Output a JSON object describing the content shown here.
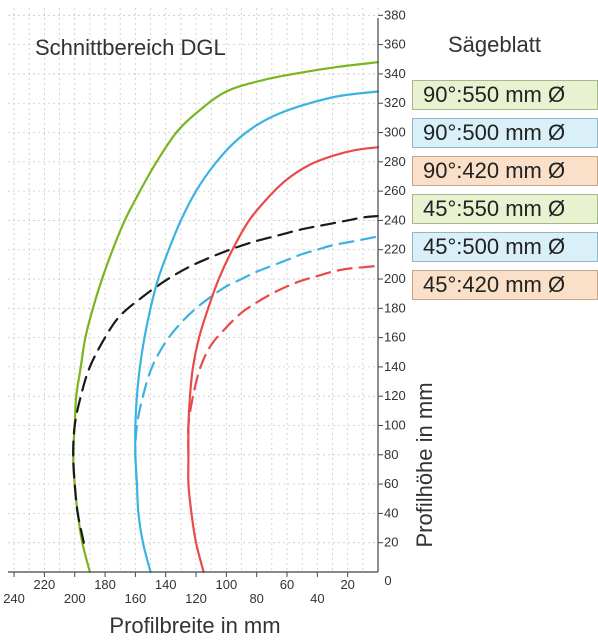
{
  "legend": {
    "title": "Sägeblatt",
    "items": [
      {
        "label": "90°:550 mm Ø",
        "color": "#e8f2d0",
        "border": "#a8b88a"
      },
      {
        "label": "90°:500 mm Ø",
        "color": "#d9f0f8",
        "border": "#93b6c4"
      },
      {
        "label": "90°:420 mm Ø",
        "color": "#fbe0c9",
        "border": "#c9a58b"
      },
      {
        "label": "45°:550 mm Ø",
        "color": "#e8f2d0",
        "border": "#a8b88a"
      },
      {
        "label": "45°:500 mm Ø",
        "color": "#d9f0f8",
        "border": "#93b6c4"
      },
      {
        "label": "45°:420 mm Ø",
        "color": "#fbe0c9",
        "border": "#c9a58b"
      }
    ]
  },
  "chart_data": {
    "type": "line",
    "title": "Schnittbereich DGL",
    "xlabel": "Profilbreite in mm",
    "ylabel": "Profilhöhe in mm",
    "xlim": [
      244,
      0
    ],
    "ylim": [
      0,
      385
    ],
    "x_ticks_upper": [
      220,
      180,
      140,
      100,
      60,
      20
    ],
    "x_ticks_lower": [
      240,
      200,
      160,
      120,
      80,
      40
    ],
    "x_tick_zero": 0,
    "y_ticks": [
      20,
      40,
      60,
      80,
      100,
      120,
      140,
      160,
      180,
      200,
      220,
      240,
      260,
      280,
      300,
      320,
      340,
      360,
      380
    ],
    "grid": true,
    "series": [
      {
        "name": "90°:550 mm Ø",
        "color": "#7ab51d",
        "dash": "solid",
        "points": [
          [
            190,
            0
          ],
          [
            195,
            20
          ],
          [
            198,
            40
          ],
          [
            200,
            60
          ],
          [
            201,
            80
          ],
          [
            200,
            100
          ],
          [
            199,
            120
          ],
          [
            196,
            140
          ],
          [
            193,
            160
          ],
          [
            188,
            180
          ],
          [
            182,
            200
          ],
          [
            175,
            220
          ],
          [
            167,
            240
          ],
          [
            157,
            260
          ],
          [
            146,
            280
          ],
          [
            133,
            300
          ],
          [
            119,
            314
          ],
          [
            100,
            328
          ],
          [
            75,
            336
          ],
          [
            50,
            341
          ],
          [
            25,
            345
          ],
          [
            0,
            348
          ]
        ]
      },
      {
        "name": "45°:550 mm Ø",
        "color": "#1a1a1a",
        "dash": "dashed",
        "points": [
          [
            194,
            20
          ],
          [
            198,
            40
          ],
          [
            200,
            60
          ],
          [
            201,
            80
          ],
          [
            200,
            100
          ],
          [
            196,
            120
          ],
          [
            190,
            140
          ],
          [
            180,
            160
          ],
          [
            170,
            175
          ],
          [
            155,
            188
          ],
          [
            140,
            199
          ],
          [
            125,
            208
          ],
          [
            110,
            215
          ],
          [
            95,
            221
          ],
          [
            80,
            226
          ],
          [
            65,
            230
          ],
          [
            50,
            234
          ],
          [
            35,
            237
          ],
          [
            20,
            240
          ],
          [
            10,
            242
          ],
          [
            0,
            243
          ]
        ]
      },
      {
        "name": "90°:500 mm Ø",
        "color": "#3ab3e2",
        "dash": "solid",
        "points": [
          [
            150,
            0
          ],
          [
            155,
            20
          ],
          [
            158,
            40
          ],
          [
            159,
            60
          ],
          [
            160,
            80
          ],
          [
            160,
            100
          ],
          [
            159,
            120
          ],
          [
            157,
            140
          ],
          [
            154,
            160
          ],
          [
            150,
            180
          ],
          [
            145,
            200
          ],
          [
            138,
            220
          ],
          [
            130,
            240
          ],
          [
            120,
            260
          ],
          [
            108,
            278
          ],
          [
            95,
            293
          ],
          [
            80,
            305
          ],
          [
            65,
            313
          ],
          [
            45,
            320
          ],
          [
            25,
            325
          ],
          [
            0,
            328
          ]
        ]
      },
      {
        "name": "45°:500 mm Ø",
        "color": "#3ab3e2",
        "dash": "dashed",
        "points": [
          [
            159,
            60
          ],
          [
            160,
            80
          ],
          [
            159,
            100
          ],
          [
            155,
            120
          ],
          [
            149,
            140
          ],
          [
            140,
            157
          ],
          [
            130,
            170
          ],
          [
            120,
            180
          ],
          [
            110,
            188
          ],
          [
            100,
            195
          ],
          [
            90,
            200
          ],
          [
            80,
            205
          ],
          [
            70,
            209
          ],
          [
            60,
            213
          ],
          [
            50,
            217
          ],
          [
            40,
            220
          ],
          [
            30,
            223
          ],
          [
            15,
            226
          ],
          [
            0,
            229
          ]
        ]
      },
      {
        "name": "90°:420 mm Ø",
        "color": "#e94a4a",
        "dash": "solid",
        "points": [
          [
            115,
            0
          ],
          [
            120,
            20
          ],
          [
            123,
            40
          ],
          [
            125,
            60
          ],
          [
            125,
            80
          ],
          [
            125,
            100
          ],
          [
            124,
            120
          ],
          [
            122,
            140
          ],
          [
            118,
            160
          ],
          [
            112,
            180
          ],
          [
            105,
            200
          ],
          [
            96,
            220
          ],
          [
            85,
            240
          ],
          [
            73,
            255
          ],
          [
            60,
            268
          ],
          [
            45,
            278
          ],
          [
            30,
            284
          ],
          [
            15,
            288
          ],
          [
            0,
            290
          ]
        ]
      },
      {
        "name": "45°:420 mm Ø",
        "color": "#e94a4a",
        "dash": "dashed",
        "points": [
          [
            125,
            80
          ],
          [
            125,
            100
          ],
          [
            122,
            120
          ],
          [
            117,
            140
          ],
          [
            110,
            155
          ],
          [
            100,
            167
          ],
          [
            90,
            177
          ],
          [
            80,
            184
          ],
          [
            70,
            190
          ],
          [
            60,
            195
          ],
          [
            50,
            199
          ],
          [
            40,
            202
          ],
          [
            30,
            205
          ],
          [
            20,
            207
          ],
          [
            10,
            208
          ],
          [
            0,
            209
          ]
        ]
      }
    ]
  }
}
